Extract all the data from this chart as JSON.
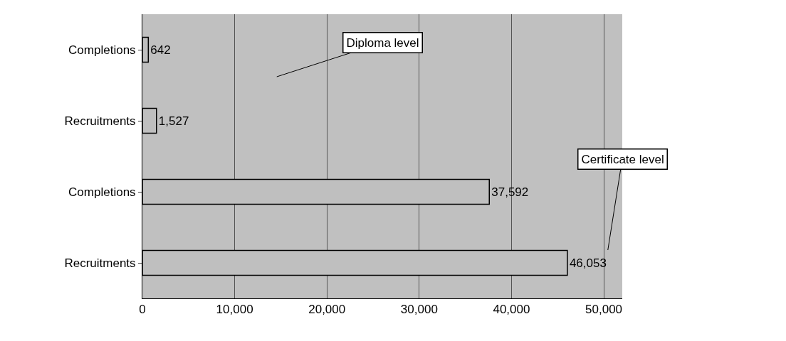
{
  "chart_data": {
    "type": "bar",
    "orientation": "horizontal",
    "categories": [
      "Completions",
      "Recruitments",
      "Completions",
      "Recruitments"
    ],
    "values": [
      642,
      1527,
      37592,
      46053
    ],
    "value_labels": [
      "642",
      "1,527",
      "37,592",
      "46,053"
    ],
    "color": "#bfbfbf",
    "xlim": [
      0,
      52000
    ],
    "xticks": [
      {
        "value": 0,
        "label": "0"
      },
      {
        "value": 10000,
        "label": "10,000"
      },
      {
        "value": 20000,
        "label": "20,000"
      },
      {
        "value": 30000,
        "label": "30,000"
      },
      {
        "value": 40000,
        "label": "40,000"
      },
      {
        "value": 50000,
        "label": "50,000"
      }
    ],
    "grid": "x",
    "legend": false,
    "annotations": [
      "Diploma level",
      "Certificate level"
    ]
  }
}
